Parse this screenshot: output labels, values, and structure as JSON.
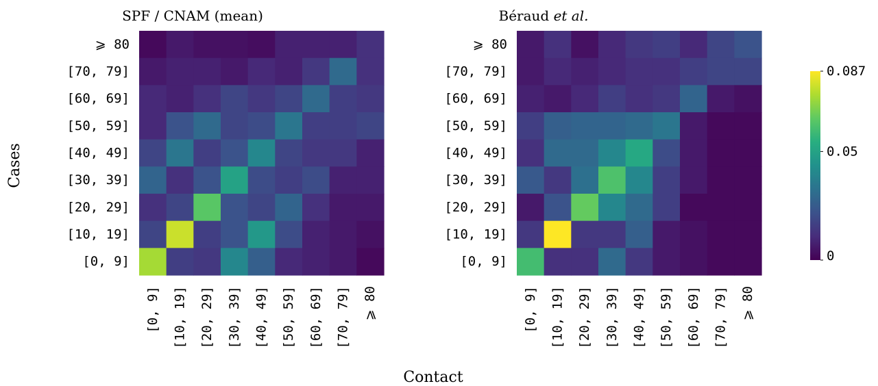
{
  "chart_data": [
    {
      "type": "heatmap",
      "title_plain": "SPF / CNAM (mean)",
      "title_italic": "",
      "rows": [
        "⩾ 80",
        "[70, 79]",
        "[60, 69]",
        "[50, 59]",
        "[40, 49]",
        "[30, 39]",
        "[20, 29]",
        "[10, 19]",
        "[0, 9]"
      ],
      "cols": [
        "[0, 9]",
        "[10, 19]",
        "[20, 29]",
        "[30, 39]",
        "[40, 49]",
        "[50, 59]",
        "[60, 69]",
        "[70, 79]",
        "⩾ 80"
      ],
      "values": [
        [
          0.002,
          0.006,
          0.004,
          0.004,
          0.003,
          0.008,
          0.008,
          0.008,
          0.012
        ],
        [
          0.006,
          0.008,
          0.008,
          0.006,
          0.01,
          0.008,
          0.014,
          0.03,
          0.012
        ],
        [
          0.01,
          0.008,
          0.012,
          0.018,
          0.014,
          0.018,
          0.03,
          0.016,
          0.014
        ],
        [
          0.01,
          0.022,
          0.03,
          0.018,
          0.02,
          0.034,
          0.016,
          0.016,
          0.018
        ],
        [
          0.018,
          0.034,
          0.016,
          0.022,
          0.04,
          0.018,
          0.014,
          0.014,
          0.008
        ],
        [
          0.028,
          0.012,
          0.022,
          0.05,
          0.02,
          0.016,
          0.02,
          0.008,
          0.008
        ],
        [
          0.012,
          0.018,
          0.064,
          0.022,
          0.018,
          0.028,
          0.012,
          0.006,
          0.006
        ],
        [
          0.018,
          0.08,
          0.016,
          0.022,
          0.046,
          0.02,
          0.008,
          0.006,
          0.004
        ],
        [
          0.075,
          0.016,
          0.014,
          0.04,
          0.026,
          0.01,
          0.008,
          0.006,
          0.002
        ]
      ]
    },
    {
      "type": "heatmap",
      "title_plain": "Béraud ",
      "title_italic": "et al.",
      "rows": [
        "⩾ 80",
        "[70, 79]",
        "[60, 69]",
        "[50, 59]",
        "[40, 49]",
        "[30, 39]",
        "[20, 29]",
        "[10, 19]",
        "[0, 9]"
      ],
      "cols": [
        "[0, 9]",
        "[10, 19]",
        "[20, 29]",
        "[30, 39]",
        "[40, 49]",
        "[50, 59]",
        "[60, 69]",
        "[70, 79]",
        "⩾ 80"
      ],
      "values": [
        [
          0.006,
          0.012,
          0.004,
          0.01,
          0.014,
          0.016,
          0.01,
          0.018,
          0.022
        ],
        [
          0.006,
          0.01,
          0.008,
          0.01,
          0.012,
          0.012,
          0.016,
          0.018,
          0.018
        ],
        [
          0.008,
          0.006,
          0.01,
          0.016,
          0.012,
          0.014,
          0.028,
          0.006,
          0.004
        ],
        [
          0.016,
          0.026,
          0.028,
          0.028,
          0.03,
          0.034,
          0.006,
          0.002,
          0.002
        ],
        [
          0.012,
          0.03,
          0.03,
          0.04,
          0.052,
          0.02,
          0.006,
          0.002,
          0.002
        ],
        [
          0.024,
          0.014,
          0.032,
          0.062,
          0.04,
          0.016,
          0.006,
          0.002,
          0.002
        ],
        [
          0.006,
          0.022,
          0.066,
          0.04,
          0.03,
          0.016,
          0.002,
          0.002,
          0.002
        ],
        [
          0.014,
          0.087,
          0.014,
          0.014,
          0.026,
          0.006,
          0.004,
          0.002,
          0.002
        ],
        [
          0.06,
          0.012,
          0.012,
          0.03,
          0.014,
          0.006,
          0.004,
          0.002,
          0.002
        ]
      ]
    }
  ],
  "axes": {
    "ylabel": "Cases",
    "xlabel": "Contact"
  },
  "colorbar": {
    "colormap": "viridis",
    "min": 0,
    "max": 0.087,
    "tick_labels": [
      "0",
      "0.05",
      "0.087"
    ],
    "tick_values": [
      0,
      0.05,
      0.087
    ]
  }
}
